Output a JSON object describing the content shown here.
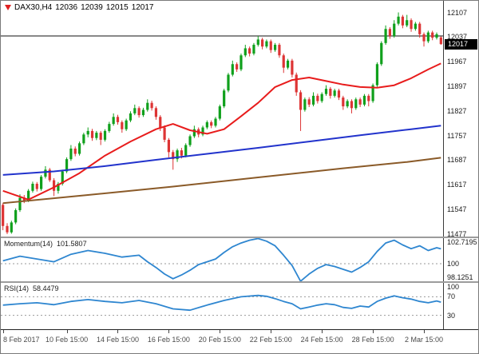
{
  "header": {
    "symbol": "DAX30,H4",
    "open": "12036",
    "high": "12039",
    "low": "12015",
    "close": "12017"
  },
  "colors": {
    "up": "#10a01c",
    "down": "#dd3434",
    "ma_red": "#e81c1c",
    "ma_blue": "#2233cc",
    "ma_brown": "#8a5a28",
    "osc": "#2e86d0",
    "hline": "#111111",
    "level": "#999999",
    "tag_bg": "#000000",
    "tag_text": "#ffffff"
  },
  "chart_data": [
    {
      "name": "price",
      "type": "candlestick",
      "title": "DAX30 H4",
      "y_axis": {
        "min": 11470,
        "max": 12140,
        "tick_labels": [
          "12107",
          "12037",
          "11967",
          "11897",
          "11827",
          "11757",
          "11687",
          "11617",
          "11547",
          "11477"
        ]
      },
      "x_ticks": [
        {
          "label": "8 Feb 2017",
          "index": 0
        },
        {
          "label": "10 Feb 15:00",
          "index": 15
        },
        {
          "label": "14 Feb 15:00",
          "index": 27
        },
        {
          "label": "16 Feb 15:00",
          "index": 39
        },
        {
          "label": "20 Feb 15:00",
          "index": 51
        },
        {
          "label": "22 Feb 15:00",
          "index": 63
        },
        {
          "label": "24 Feb 15:00",
          "index": 75
        },
        {
          "label": "28 Feb 15:00",
          "index": 87
        },
        {
          "label": "2 Mar 15:00",
          "index": 99
        }
      ],
      "hline": 12040,
      "price_tag": "12017",
      "candles": [
        [
          11560,
          11565,
          11488,
          11500
        ],
        [
          11500,
          11508,
          11477,
          11482
        ],
        [
          11482,
          11515,
          11478,
          11510
        ],
        [
          11510,
          11550,
          11505,
          11545
        ],
        [
          11545,
          11590,
          11540,
          11580
        ],
        [
          11580,
          11588,
          11565,
          11572
        ],
        [
          11572,
          11605,
          11568,
          11600
        ],
        [
          11600,
          11626,
          11595,
          11620
        ],
        [
          11620,
          11625,
          11598,
          11605
        ],
        [
          11605,
          11645,
          11600,
          11640
        ],
        [
          11640,
          11670,
          11635,
          11660
        ],
        [
          11660,
          11665,
          11625,
          11630
        ],
        [
          11630,
          11636,
          11585,
          11600
        ],
        [
          11600,
          11625,
          11592,
          11620
        ],
        [
          11620,
          11660,
          11615,
          11655
        ],
        [
          11655,
          11695,
          11650,
          11690
        ],
        [
          11690,
          11730,
          11685,
          11720
        ],
        [
          11720,
          11726,
          11698,
          11705
        ],
        [
          11705,
          11740,
          11700,
          11735
        ],
        [
          11735,
          11765,
          11730,
          11760
        ],
        [
          11760,
          11780,
          11752,
          11770
        ],
        [
          11770,
          11776,
          11742,
          11750
        ],
        [
          11750,
          11770,
          11744,
          11765
        ],
        [
          11765,
          11770,
          11730,
          11745
        ],
        [
          11745,
          11775,
          11740,
          11770
        ],
        [
          11770,
          11796,
          11765,
          11790
        ],
        [
          11790,
          11820,
          11785,
          11810
        ],
        [
          11810,
          11816,
          11788,
          11795
        ],
        [
          11795,
          11800,
          11765,
          11775
        ],
        [
          11775,
          11805,
          11770,
          11800
        ],
        [
          11800,
          11826,
          11795,
          11820
        ],
        [
          11820,
          11845,
          11815,
          11835
        ],
        [
          11835,
          11840,
          11808,
          11815
        ],
        [
          11815,
          11836,
          11810,
          11830
        ],
        [
          11830,
          11860,
          11825,
          11850
        ],
        [
          11850,
          11856,
          11828,
          11835
        ],
        [
          11835,
          11840,
          11802,
          11810
        ],
        [
          11810,
          11815,
          11770,
          11780
        ],
        [
          11780,
          11786,
          11738,
          11745
        ],
        [
          11745,
          11750,
          11695,
          11710
        ],
        [
          11710,
          11716,
          11660,
          11690
        ],
        [
          11690,
          11720,
          11682,
          11715
        ],
        [
          11715,
          11722,
          11692,
          11700
        ],
        [
          11700,
          11735,
          11695,
          11730
        ],
        [
          11730,
          11760,
          11725,
          11755
        ],
        [
          11755,
          11785,
          11750,
          11775
        ],
        [
          11775,
          11780,
          11752,
          11760
        ],
        [
          11760,
          11785,
          11755,
          11780
        ],
        [
          11780,
          11800,
          11775,
          11795
        ],
        [
          11795,
          11800,
          11778,
          11785
        ],
        [
          11785,
          11810,
          11780,
          11805
        ],
        [
          11805,
          11845,
          11800,
          11840
        ],
        [
          11840,
          11890,
          11835,
          11885
        ],
        [
          11885,
          11935,
          11880,
          11930
        ],
        [
          11930,
          11970,
          11925,
          11960
        ],
        [
          11960,
          11965,
          11938,
          11945
        ],
        [
          11945,
          11990,
          11940,
          11985
        ],
        [
          11985,
          12015,
          11980,
          12005
        ],
        [
          12005,
          12010,
          11982,
          11990
        ],
        [
          11990,
          12020,
          11985,
          12015
        ],
        [
          12015,
          12040,
          12010,
          12030
        ],
        [
          12030,
          12035,
          12002,
          12010
        ],
        [
          12010,
          12030,
          12005,
          12025
        ],
        [
          12025,
          12030,
          11992,
          12000
        ],
        [
          12000,
          12020,
          11995,
          12015
        ],
        [
          12015,
          12020,
          11978,
          11985
        ],
        [
          11985,
          11990,
          11935,
          11950
        ],
        [
          11950,
          11975,
          11945,
          11970
        ],
        [
          11970,
          11975,
          11922,
          11930
        ],
        [
          11930,
          11936,
          11870,
          11880
        ],
        [
          11880,
          11886,
          11770,
          11830
        ],
        [
          11830,
          11865,
          11825,
          11860
        ],
        [
          11860,
          11866,
          11838,
          11845
        ],
        [
          11845,
          11880,
          11840,
          11870
        ],
        [
          11870,
          11876,
          11848,
          11855
        ],
        [
          11855,
          11880,
          11850,
          11875
        ],
        [
          11875,
          11900,
          11870,
          11890
        ],
        [
          11890,
          11895,
          11862,
          11870
        ],
        [
          11870,
          11890,
          11865,
          11885
        ],
        [
          11885,
          11890,
          11858,
          11865
        ],
        [
          11865,
          11870,
          11830,
          11840
        ],
        [
          11840,
          11860,
          11835,
          11855
        ],
        [
          11855,
          11860,
          11820,
          11835
        ],
        [
          11835,
          11865,
          11830,
          11860
        ],
        [
          11860,
          11865,
          11838,
          11845
        ],
        [
          11845,
          11875,
          11840,
          11870
        ],
        [
          11870,
          11875,
          11840,
          11855
        ],
        [
          11855,
          11905,
          11850,
          11900
        ],
        [
          11900,
          11965,
          11895,
          11960
        ],
        [
          11960,
          12025,
          11955,
          12020
        ],
        [
          12020,
          12070,
          12015,
          12060
        ],
        [
          12060,
          12065,
          12032,
          12040
        ],
        [
          12040,
          12085,
          12035,
          12075
        ],
        [
          12075,
          12107,
          12070,
          12095
        ],
        [
          12095,
          12100,
          12062,
          12070
        ],
        [
          12070,
          12100,
          12065,
          12085
        ],
        [
          12085,
          12090,
          12052,
          12060
        ],
        [
          12060,
          12080,
          12055,
          12075
        ],
        [
          12075,
          12080,
          12035,
          12045
        ],
        [
          12045,
          12050,
          12010,
          12025
        ],
        [
          12025,
          12055,
          12020,
          12050
        ],
        [
          12050,
          12055,
          12028,
          12035
        ],
        [
          12035,
          12050,
          12030,
          12045
        ],
        [
          12036,
          12039,
          12015,
          12017
        ]
      ],
      "overlays": [
        {
          "name": "ma-fast-red",
          "color_key": "ma_red",
          "points": [
            [
              0,
              11600
            ],
            [
              6,
              11575
            ],
            [
              12,
              11610
            ],
            [
              18,
              11650
            ],
            [
              24,
              11700
            ],
            [
              30,
              11740
            ],
            [
              36,
              11775
            ],
            [
              40,
              11790
            ],
            [
              44,
              11772
            ],
            [
              48,
              11762
            ],
            [
              52,
              11775
            ],
            [
              56,
              11812
            ],
            [
              60,
              11850
            ],
            [
              64,
              11895
            ],
            [
              68,
              11915
            ],
            [
              72,
              11922
            ],
            [
              76,
              11912
            ],
            [
              80,
              11902
            ],
            [
              84,
              11895
            ],
            [
              88,
              11893
            ],
            [
              92,
              11900
            ],
            [
              96,
              11920
            ],
            [
              100,
              11945
            ],
            [
              103,
              11962
            ]
          ]
        },
        {
          "name": "ma-slow-blue",
          "color_key": "ma_blue",
          "points": [
            [
              0,
              11645
            ],
            [
              12,
              11655
            ],
            [
              24,
              11670
            ],
            [
              36,
              11688
            ],
            [
              48,
              11705
            ],
            [
              60,
              11722
            ],
            [
              72,
              11740
            ],
            [
              84,
              11758
            ],
            [
              96,
              11775
            ],
            [
              103,
              11785
            ]
          ]
        },
        {
          "name": "ma-slowest-brown",
          "color_key": "ma_brown",
          "points": [
            [
              0,
              11565
            ],
            [
              20,
              11588
            ],
            [
              40,
              11612
            ],
            [
              60,
              11638
            ],
            [
              80,
              11664
            ],
            [
              95,
              11682
            ],
            [
              103,
              11694
            ]
          ]
        }
      ]
    },
    {
      "name": "momentum",
      "type": "line",
      "label": "Momentum(14)",
      "value": "101.5807",
      "range": [
        98.1251,
        102.7195
      ],
      "levels": [
        100
      ],
      "axis_labels": [
        {
          "text": "102.7195",
          "value": 102.7195
        },
        {
          "text": "100",
          "value": 100
        },
        {
          "text": "98.1251",
          "value": 98.1251
        }
      ],
      "points": [
        [
          0,
          100.3
        ],
        [
          4,
          100.8
        ],
        [
          8,
          100.5
        ],
        [
          12,
          100.2
        ],
        [
          16,
          101.0
        ],
        [
          20,
          101.4
        ],
        [
          24,
          101.1
        ],
        [
          28,
          100.7
        ],
        [
          32,
          100.9
        ],
        [
          34,
          100.2
        ],
        [
          36,
          99.6
        ],
        [
          38,
          98.9
        ],
        [
          40,
          98.4
        ],
        [
          42,
          98.8
        ],
        [
          44,
          99.3
        ],
        [
          46,
          99.9
        ],
        [
          48,
          100.2
        ],
        [
          50,
          100.5
        ],
        [
          52,
          101.2
        ],
        [
          54,
          101.8
        ],
        [
          56,
          102.2
        ],
        [
          58,
          102.5
        ],
        [
          60,
          102.68
        ],
        [
          62,
          102.4
        ],
        [
          64,
          101.9
        ],
        [
          66,
          100.9
        ],
        [
          68,
          99.8
        ],
        [
          70,
          98.13
        ],
        [
          72,
          98.9
        ],
        [
          74,
          99.5
        ],
        [
          76,
          99.9
        ],
        [
          78,
          99.7
        ],
        [
          80,
          99.4
        ],
        [
          82,
          99.1
        ],
        [
          84,
          99.6
        ],
        [
          86,
          100.2
        ],
        [
          88,
          101.3
        ],
        [
          90,
          102.2
        ],
        [
          92,
          102.5
        ],
        [
          94,
          102.0
        ],
        [
          96,
          101.6
        ],
        [
          98,
          101.9
        ],
        [
          100,
          101.4
        ],
        [
          102,
          101.7
        ],
        [
          103,
          101.58
        ]
      ]
    },
    {
      "name": "rsi",
      "type": "line",
      "label": "RSI(14)",
      "value": "58.4479",
      "range": [
        0,
        100
      ],
      "levels": [
        70,
        30
      ],
      "axis_labels": [
        {
          "text": "100",
          "value": 100
        },
        {
          "text": "70",
          "value": 70
        },
        {
          "text": "30",
          "value": 30
        }
      ],
      "points": [
        [
          0,
          52
        ],
        [
          4,
          55
        ],
        [
          8,
          57
        ],
        [
          12,
          53
        ],
        [
          16,
          60
        ],
        [
          20,
          64
        ],
        [
          24,
          60
        ],
        [
          28,
          57
        ],
        [
          32,
          62
        ],
        [
          36,
          55
        ],
        [
          40,
          44
        ],
        [
          44,
          41
        ],
        [
          48,
          52
        ],
        [
          52,
          62
        ],
        [
          56,
          70
        ],
        [
          60,
          73
        ],
        [
          62,
          71
        ],
        [
          64,
          66
        ],
        [
          66,
          60
        ],
        [
          68,
          55
        ],
        [
          70,
          44
        ],
        [
          72,
          48
        ],
        [
          74,
          52
        ],
        [
          76,
          55
        ],
        [
          78,
          53
        ],
        [
          80,
          47
        ],
        [
          82,
          45
        ],
        [
          84,
          50
        ],
        [
          86,
          48
        ],
        [
          88,
          60
        ],
        [
          90,
          67
        ],
        [
          92,
          72
        ],
        [
          94,
          68
        ],
        [
          96,
          65
        ],
        [
          98,
          60
        ],
        [
          100,
          57
        ],
        [
          102,
          61
        ],
        [
          103,
          58.45
        ]
      ]
    }
  ]
}
